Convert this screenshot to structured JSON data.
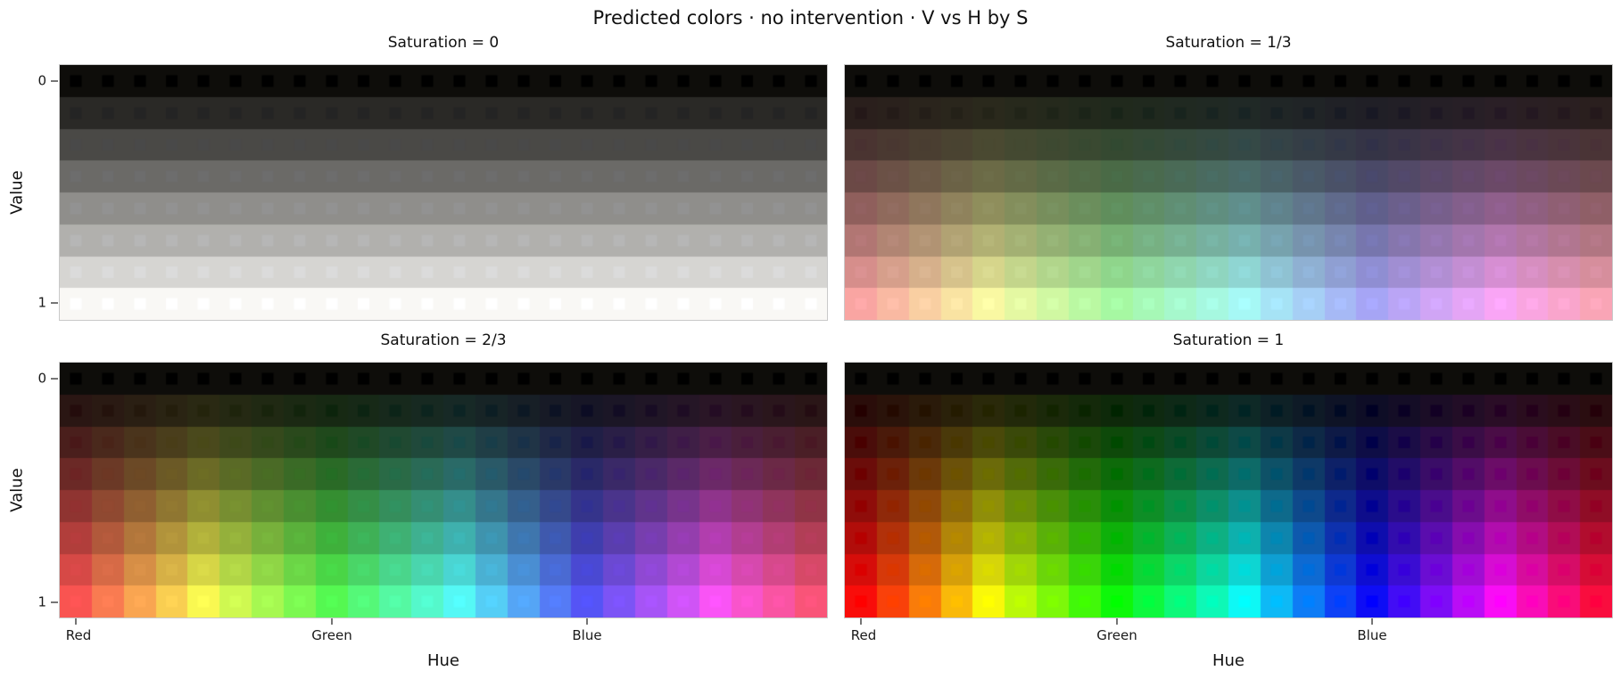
{
  "chart_data": {
    "type": "heatmap",
    "title": "Predicted colors · no intervention · V vs H by S",
    "xlabel": "Hue",
    "ylabel": "Value",
    "panels": [
      {
        "title": "Saturation = 0",
        "saturation": 0
      },
      {
        "title": "Saturation = 1/3",
        "saturation": 0.33333
      },
      {
        "title": "Saturation = 2/3",
        "saturation": 0.66667
      },
      {
        "title": "Saturation = 1",
        "saturation": 1
      }
    ],
    "grid": {
      "rows": 8,
      "cols": 24
    },
    "hue_degrees": [
      0,
      15,
      30,
      45,
      60,
      75,
      90,
      105,
      120,
      135,
      150,
      165,
      180,
      195,
      210,
      225,
      240,
      255,
      270,
      285,
      300,
      315,
      330,
      345
    ],
    "value_levels": [
      0,
      0.1429,
      0.2857,
      0.4286,
      0.5714,
      0.7143,
      0.8571,
      1
    ],
    "xticks": [
      {
        "label": "Red",
        "hue": 0
      },
      {
        "label": "Green",
        "hue": 120
      },
      {
        "label": "Blue",
        "hue": 240
      }
    ],
    "yticks": [
      {
        "label": "0",
        "value": 0
      },
      {
        "label": "1",
        "value": 1
      }
    ],
    "cell_rule": "Each cell background shows the model-predicted color for HSV(h,s,v); the small centered square marker shows the exact target HSV(h,s,v) color.",
    "predicted_color_model": {
      "scale": 0.975,
      "offset": -2,
      "dark_lift": 14,
      "dark_power": 5,
      "tint_rgb": [
        2,
        1,
        -2
      ]
    },
    "marker_size_px": 13,
    "style": {
      "background": "#ffffff",
      "spine_color": "#c9c9c9",
      "tick_color": "#757575",
      "text_color": "#111111"
    }
  }
}
